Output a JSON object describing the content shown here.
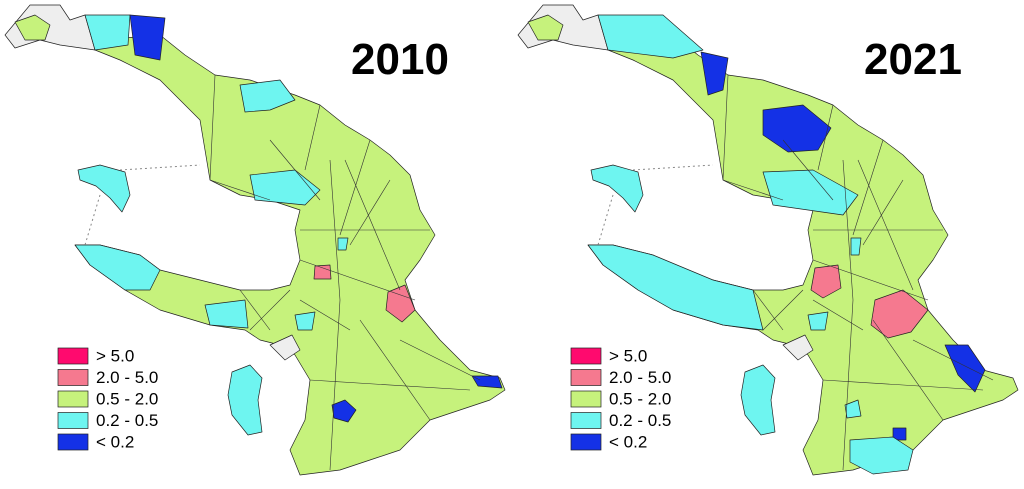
{
  "panels": [
    {
      "title": "2010",
      "legend": [
        {
          "label": "> 5.0",
          "color": "#ff0a6e"
        },
        {
          "label": "2.0 - 5.0",
          "color": "#f5798f"
        },
        {
          "label": "0.5 - 2.0",
          "color": "#c6f27c"
        },
        {
          "label": "0.2 - 0.5",
          "color": "#6ef5f0"
        },
        {
          "label": "< 0.2",
          "color": "#1431e6"
        }
      ]
    },
    {
      "title": "2021",
      "legend": [
        {
          "label": "> 5.0",
          "color": "#ff0a6e"
        },
        {
          "label": "2.0 - 5.0",
          "color": "#f5798f"
        },
        {
          "label": "0.5 - 2.0",
          "color": "#c6f27c"
        },
        {
          "label": "0.2 - 0.5",
          "color": "#6ef5f0"
        },
        {
          "label": "< 0.2",
          "color": "#1431e6"
        }
      ]
    }
  ]
}
